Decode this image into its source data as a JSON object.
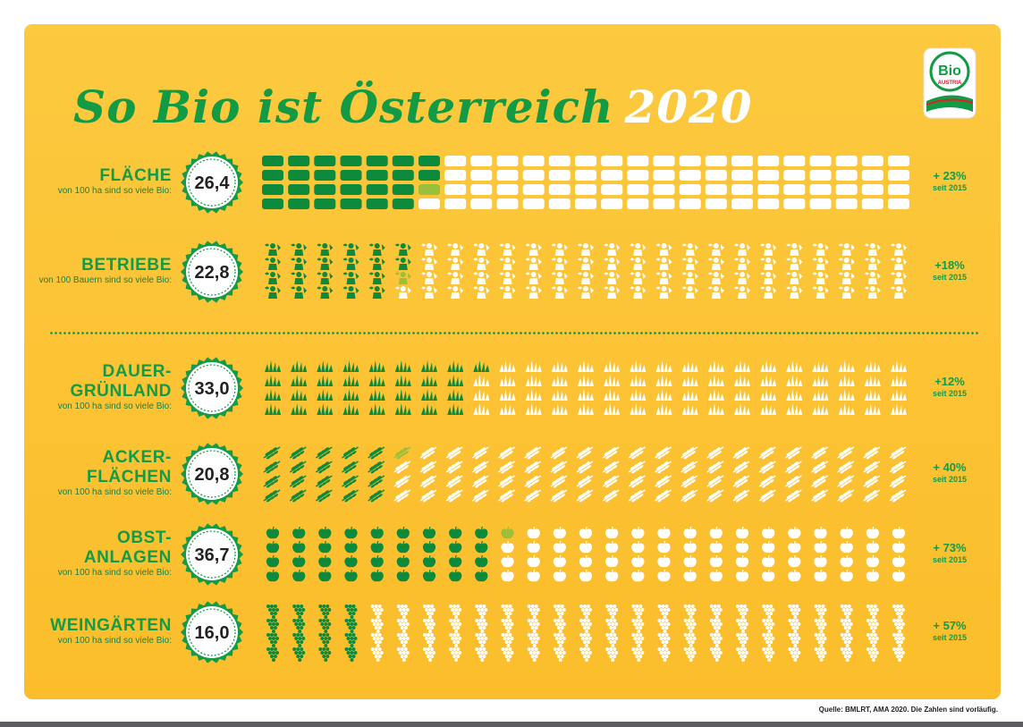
{
  "title": {
    "main": "So Bio ist Österreich",
    "year": "2020"
  },
  "logo": {
    "brand": "Bio",
    "sub": "AUSTRIA"
  },
  "chart_data": {
    "type": "pictogram",
    "unit_total": 100,
    "colors": {
      "filled": "#0d8a3c",
      "empty": "#ffffff",
      "partial": "#9cbf3a",
      "accent": "#159a45"
    },
    "rows": [
      {
        "key": "flaeche",
        "icon": "rounded-rect-icon",
        "cols": 25,
        "grid_rows": 4,
        "label_lines": [
          "FLÄCHE"
        ],
        "sublabel": "von 100 ha sind so viele Bio:",
        "value": 26.4,
        "value_text": "26,4",
        "change": "+ 23%",
        "since": "seit 2015"
      },
      {
        "key": "betriebe",
        "icon": "farmer-icon",
        "cols": 25,
        "grid_rows": 4,
        "label_lines": [
          "BETRIEBE"
        ],
        "sublabel": "von 100 Bauern sind so viele Bio:",
        "value": 22.8,
        "value_text": "22,8",
        "change": "+18%",
        "since": "seit 2015"
      },
      {
        "key": "dauergruenland",
        "icon": "grass-icon",
        "cols": 25,
        "grid_rows": 4,
        "label_lines": [
          "DAUER-",
          "GRÜNLAND"
        ],
        "sublabel": "von 100 ha sind so viele Bio:",
        "value": 33.0,
        "value_text": "33,0",
        "change": "+12%",
        "since": "seit 2015"
      },
      {
        "key": "ackerflaechen",
        "icon": "wheat-icon",
        "cols": 25,
        "grid_rows": 4,
        "label_lines": [
          "ACKER-",
          "FLÄCHEN"
        ],
        "sublabel": "von 100 ha sind so viele Bio:",
        "value": 20.8,
        "value_text": "20,8",
        "change": "+ 40%",
        "since": "seit 2015"
      },
      {
        "key": "obstanlagen",
        "icon": "apple-icon",
        "cols": 25,
        "grid_rows": 4,
        "label_lines": [
          "OBST-",
          "ANLAGEN"
        ],
        "sublabel": "von 100 ha sind so viele Bio:",
        "value": 36.7,
        "value_text": "36,7",
        "change": "+ 73%",
        "since": "seit 2015"
      },
      {
        "key": "weingaerten",
        "icon": "grapes-icon",
        "cols": 25,
        "grid_rows": 4,
        "label_lines": [
          "WEINGÄRTEN"
        ],
        "sublabel": "von 100 ha sind so viele Bio:",
        "value": 16.0,
        "value_text": "16,0",
        "change": "+ 57%",
        "since": "seit 2015"
      }
    ]
  },
  "source": "Quelle: BMLRT, AMA 2020. Die Zahlen sind vorläufig."
}
